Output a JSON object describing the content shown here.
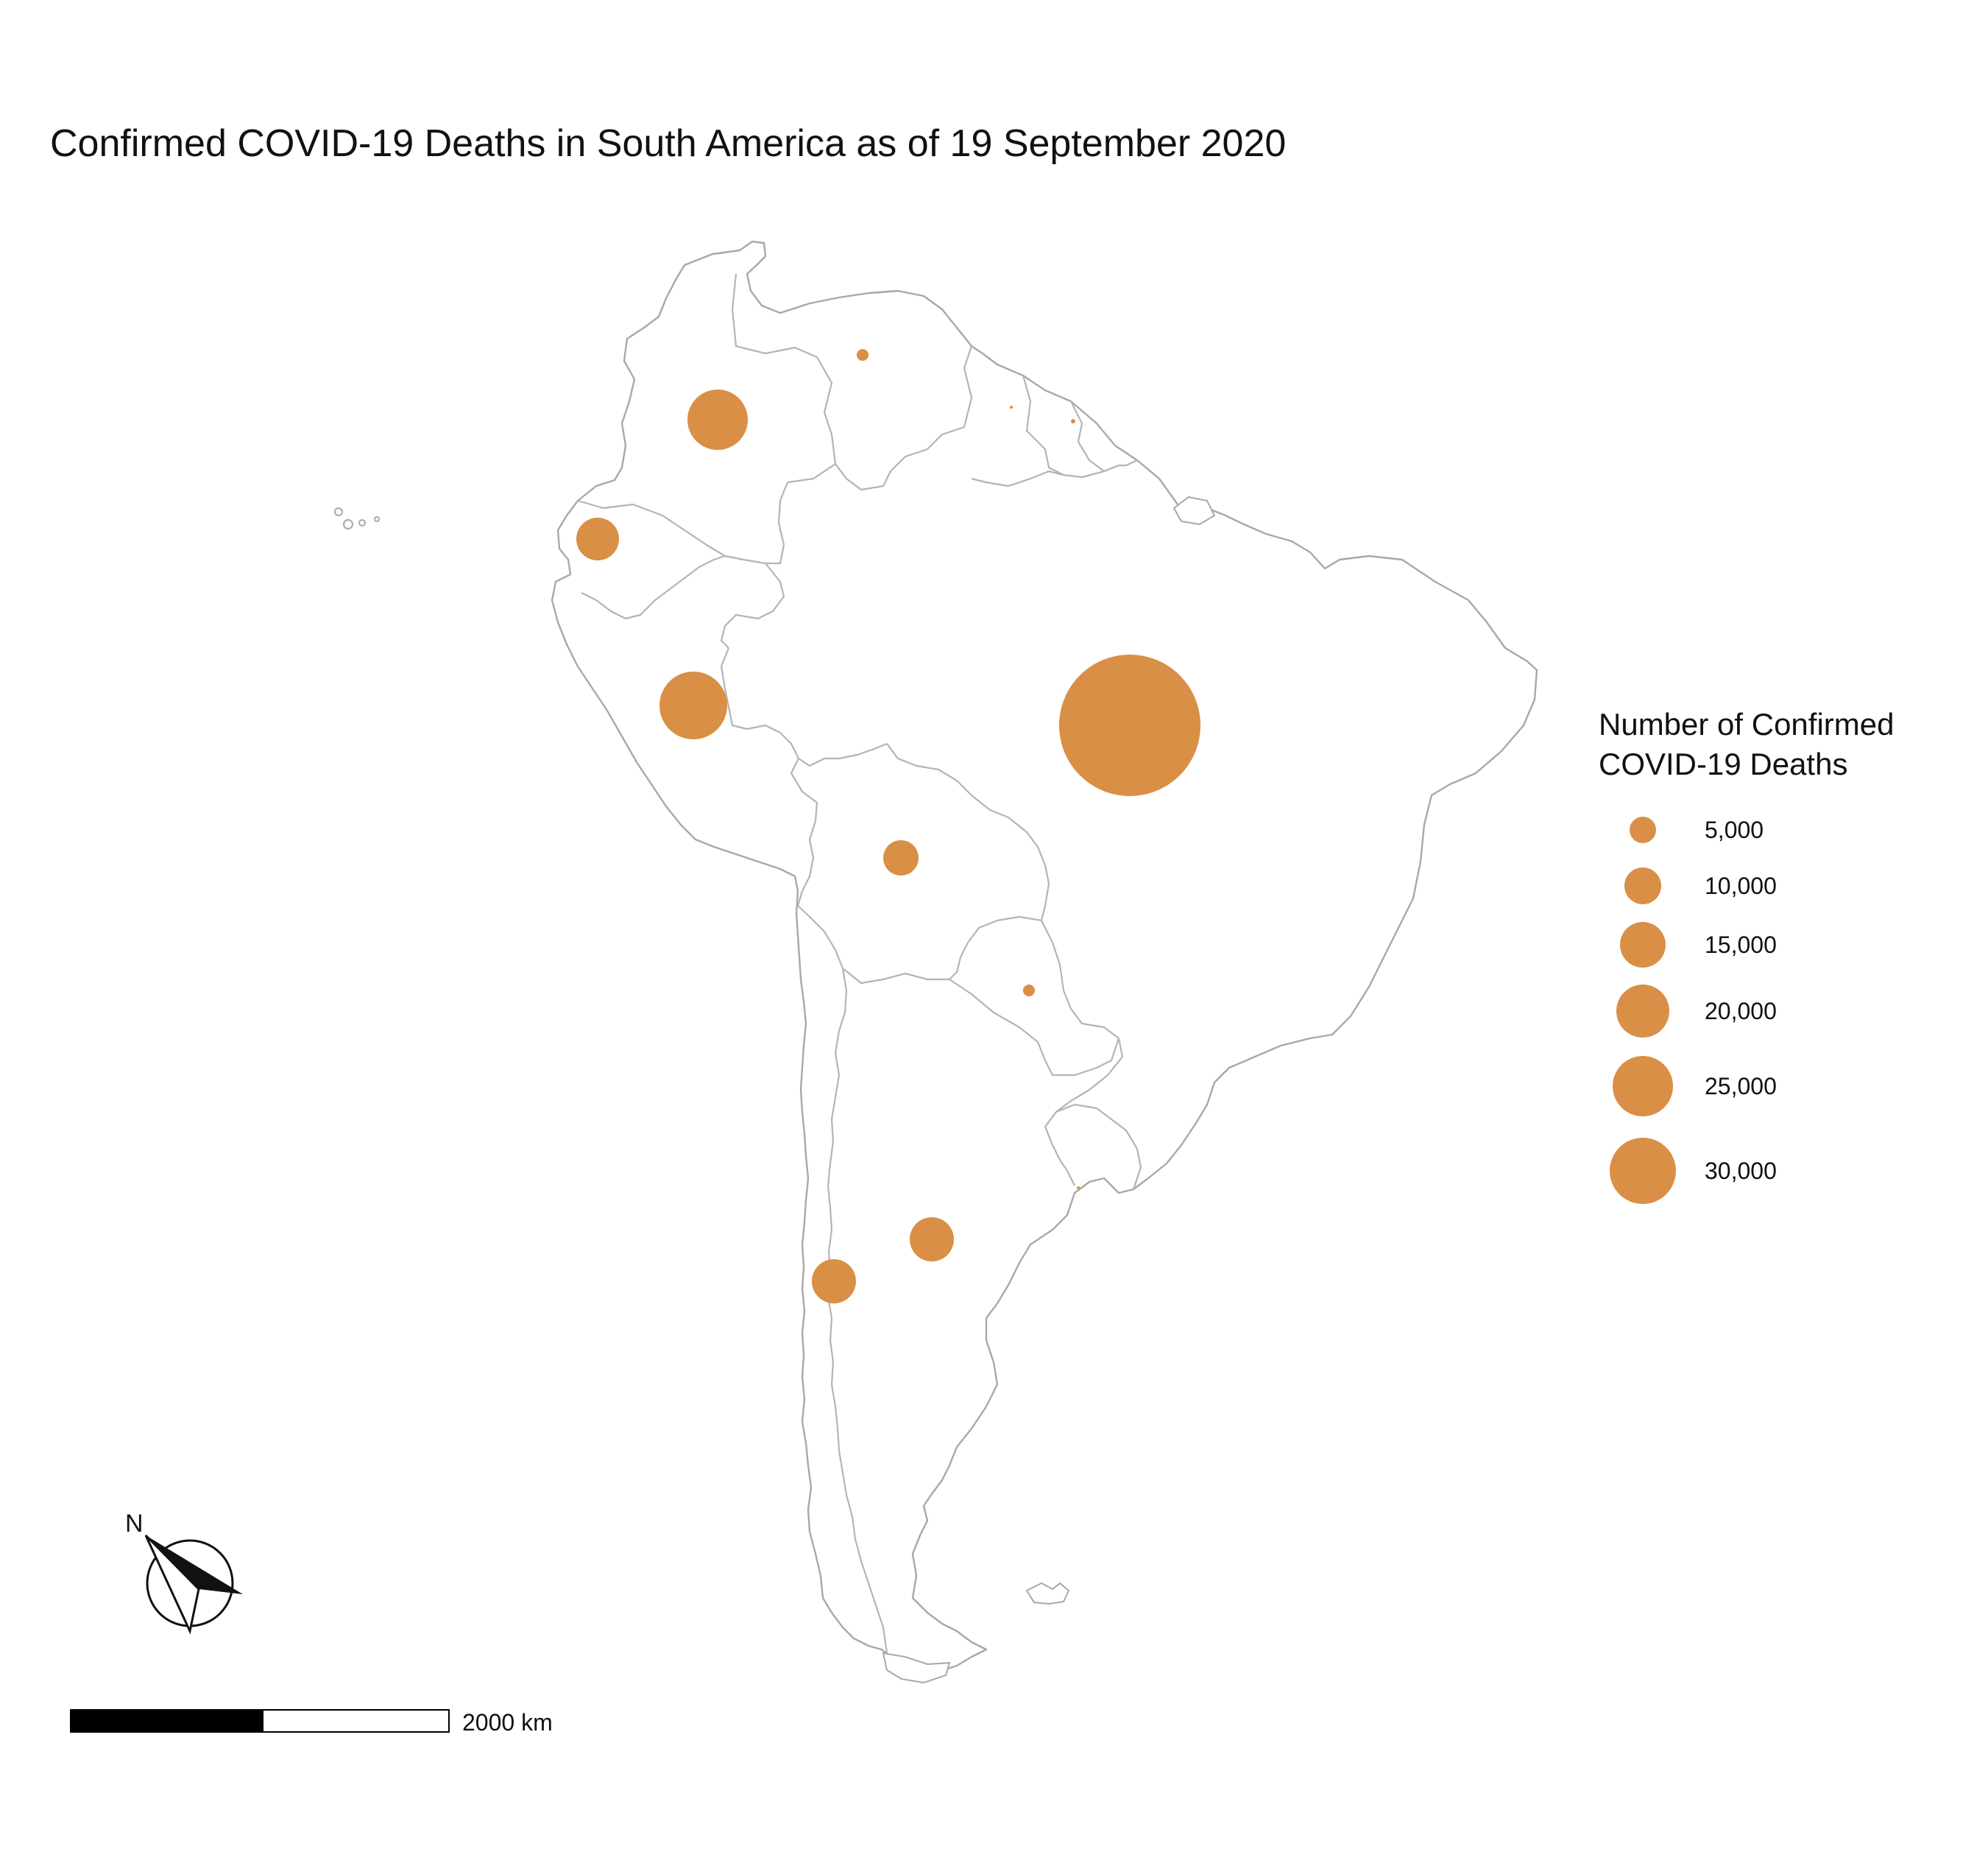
{
  "title": "Confirmed COVID-19 Deaths in South America as of 19 September 2020",
  "legend": {
    "title_line1": "Number of Confirmed",
    "title_line2": "COVID-19 Deaths",
    "entries": [
      {
        "label": "5,000",
        "value": 5000
      },
      {
        "label": "10,000",
        "value": 10000
      },
      {
        "label": "15,000",
        "value": 15000
      },
      {
        "label": "20,000",
        "value": 20000
      },
      {
        "label": "25,000",
        "value": 25000
      },
      {
        "label": "30,000",
        "value": 30000
      }
    ]
  },
  "symbol_color": "#d98f45",
  "scale_bar": {
    "label": "2000 km"
  },
  "north_arrow": {
    "label": "N"
  }
}
